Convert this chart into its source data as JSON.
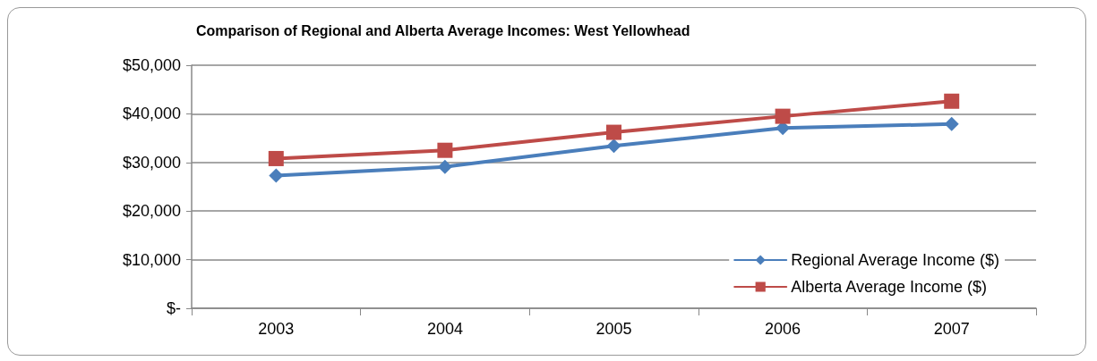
{
  "chart_data": {
    "type": "line",
    "title": "Comparison of Regional and Alberta Average Incomes: West Yellowhead",
    "categories": [
      "2003",
      "2004",
      "2005",
      "2006",
      "2007"
    ],
    "series": [
      {
        "name": "Regional Average Income ($)",
        "color": "#4a7ebb",
        "marker": "diamond",
        "values": [
          27300,
          29100,
          33400,
          37100,
          37900
        ]
      },
      {
        "name": "Alberta Average Income ($)",
        "color": "#be4b48",
        "marker": "square",
        "values": [
          30800,
          32500,
          36200,
          39500,
          42600
        ]
      }
    ],
    "ylim": [
      0,
      50000
    ],
    "yticks": [
      {
        "value": 0,
        "label": "$-"
      },
      {
        "value": 10000,
        "label": "$10,000"
      },
      {
        "value": 20000,
        "label": "$20,000"
      },
      {
        "value": 30000,
        "label": "$30,000"
      },
      {
        "value": 40000,
        "label": "$40,000"
      },
      {
        "value": 50000,
        "label": "$50,000"
      }
    ],
    "grid": "y",
    "legend": "bottom right",
    "line_style": "solid"
  }
}
